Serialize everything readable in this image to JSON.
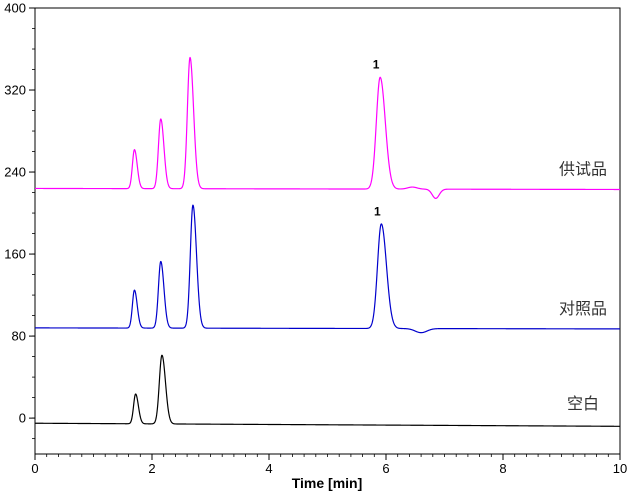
{
  "chart_data": {
    "type": "line",
    "xlabel": "Time [min]",
    "ylabel": "",
    "xlim": [
      0,
      10
    ],
    "ylim": [
      -35,
      400
    ],
    "x_ticks": [
      0,
      2,
      4,
      6,
      8,
      10
    ],
    "y_ticks": [
      0,
      80,
      160,
      240,
      320,
      400
    ],
    "x_tick_labels": [
      "0",
      "2",
      "4",
      "6",
      "8",
      "10"
    ],
    "y_tick_labels": [
      "0",
      "80",
      "160",
      "240",
      "320",
      "400"
    ],
    "grid": false,
    "legend": "none",
    "series": [
      {
        "name": "供试品",
        "color": "#ff00ff",
        "baseline": 224,
        "baseline_end": 223,
        "label_at_x": 9.3,
        "peaks": [
          {
            "x": 1.7,
            "height": 38,
            "width": 0.035
          },
          {
            "x": 2.15,
            "height": 68,
            "width": 0.04
          },
          {
            "x": 2.65,
            "height": 128,
            "width": 0.045
          },
          {
            "x": 5.9,
            "height": 109,
            "width": 0.065,
            "label": "1"
          }
        ],
        "dips": [
          {
            "x": 6.45,
            "height": 2,
            "width": 0.08
          },
          {
            "x": 6.85,
            "height": -9,
            "width": 0.06
          }
        ]
      },
      {
        "name": "对照品",
        "color": "#0000cc",
        "baseline": 88,
        "baseline_end": 87,
        "label_at_x": 9.3,
        "peaks": [
          {
            "x": 1.7,
            "height": 37,
            "width": 0.035
          },
          {
            "x": 2.15,
            "height": 65,
            "width": 0.04
          },
          {
            "x": 2.7,
            "height": 120,
            "width": 0.045
          },
          {
            "x": 5.92,
            "height": 102,
            "width": 0.065,
            "label": "1"
          }
        ],
        "dips": [
          {
            "x": 6.6,
            "height": -4,
            "width": 0.1
          }
        ]
      },
      {
        "name": "空白",
        "color": "#000000",
        "baseline": -5,
        "baseline_end": -8,
        "label_at_x": 9.3,
        "peaks": [
          {
            "x": 1.72,
            "height": 29,
            "width": 0.035
          },
          {
            "x": 2.17,
            "height": 67,
            "width": 0.045
          }
        ],
        "dips": []
      }
    ]
  }
}
